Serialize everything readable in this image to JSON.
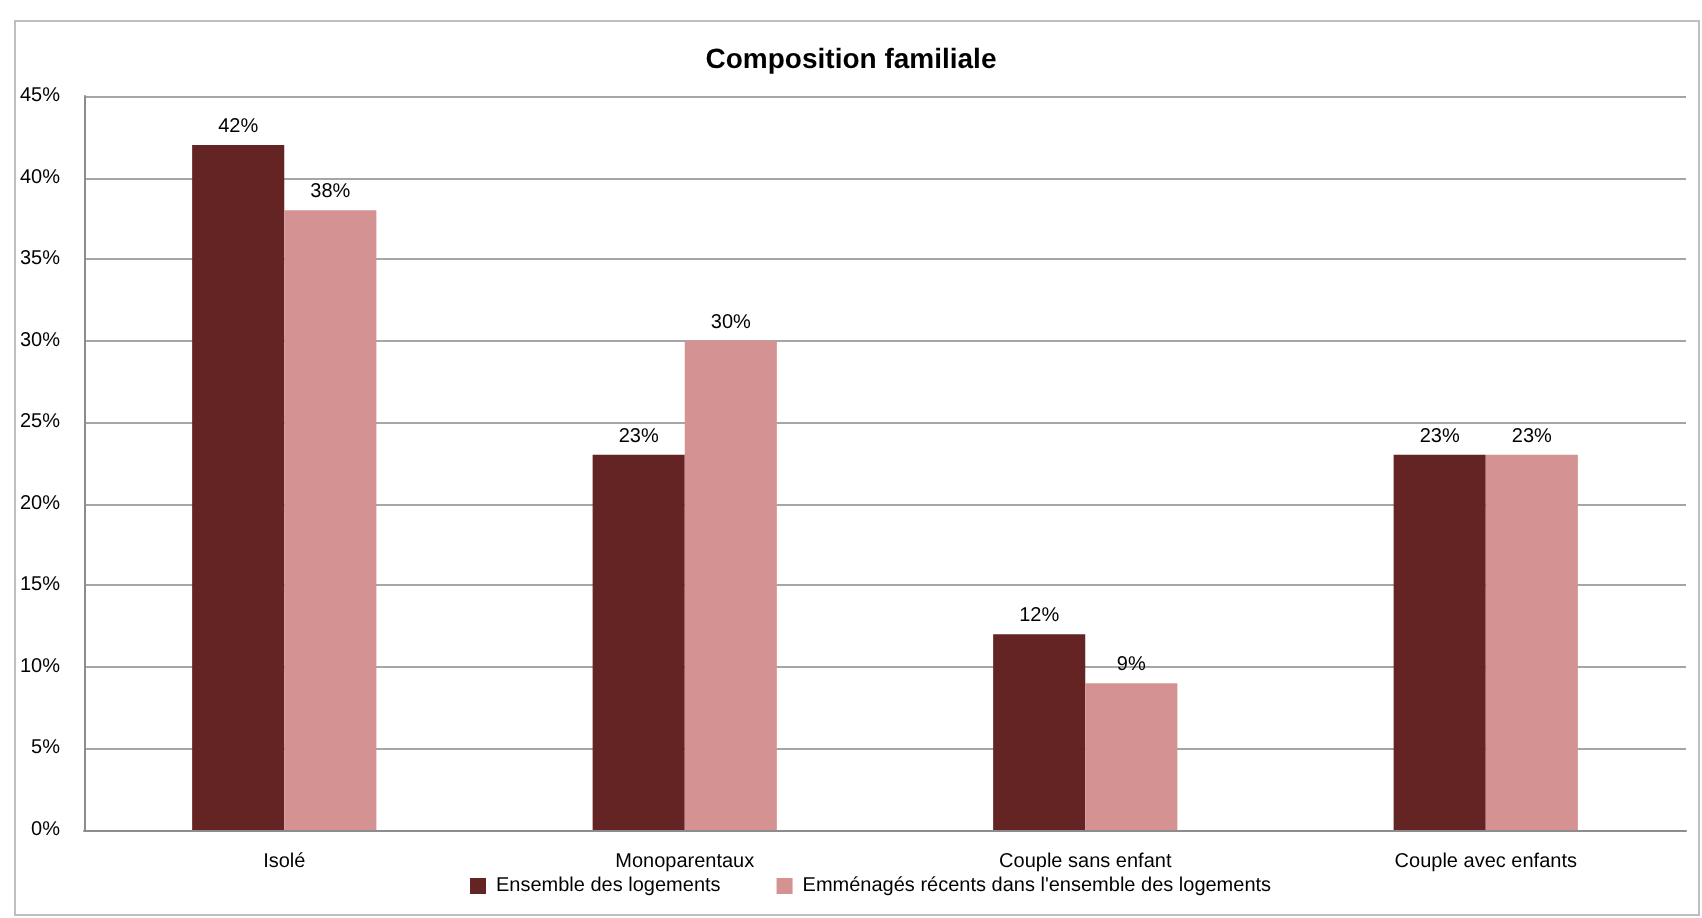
{
  "chart_data": {
    "type": "bar",
    "title": "Composition familiale",
    "categories": [
      "Isolé",
      "Monoparentaux",
      "Couple sans enfant",
      "Couple avec enfants"
    ],
    "series": [
      {
        "name": "Ensemble des logements",
        "color": "#632423",
        "values": [
          42,
          23,
          12,
          23
        ],
        "value_labels": [
          "42%",
          "23%",
          "12%",
          "23%"
        ]
      },
      {
        "name": "Emménagés récents dans l'ensemble des logements",
        "color": "#d49392",
        "values": [
          38,
          30,
          9,
          23
        ],
        "value_labels": [
          "38%",
          "30%",
          "9%",
          "23%"
        ]
      }
    ],
    "ylim": [
      0,
      45
    ],
    "yticks": [
      {
        "value": 0,
        "label": "0%"
      },
      {
        "value": 5,
        "label": "5%"
      },
      {
        "value": 10,
        "label": "10%"
      },
      {
        "value": 15,
        "label": "15%"
      },
      {
        "value": 20,
        "label": "20%"
      },
      {
        "value": 25,
        "label": "25%"
      },
      {
        "value": 30,
        "label": "30%"
      },
      {
        "value": 35,
        "label": "35%"
      },
      {
        "value": 40,
        "label": "40%"
      },
      {
        "value": 45,
        "label": "45%"
      }
    ],
    "grid": "y",
    "legend": "bottom"
  }
}
